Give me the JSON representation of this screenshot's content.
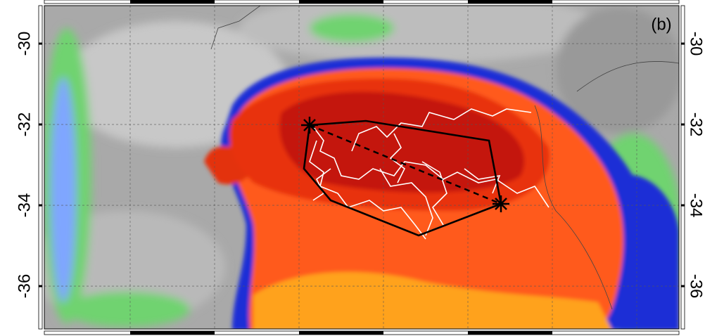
{
  "map": {
    "panel_label": "(b)",
    "ylim": [
      -37.06,
      -29.06
    ],
    "lat_ticks": [
      -30,
      -32,
      -34,
      -36
    ]
  }
}
